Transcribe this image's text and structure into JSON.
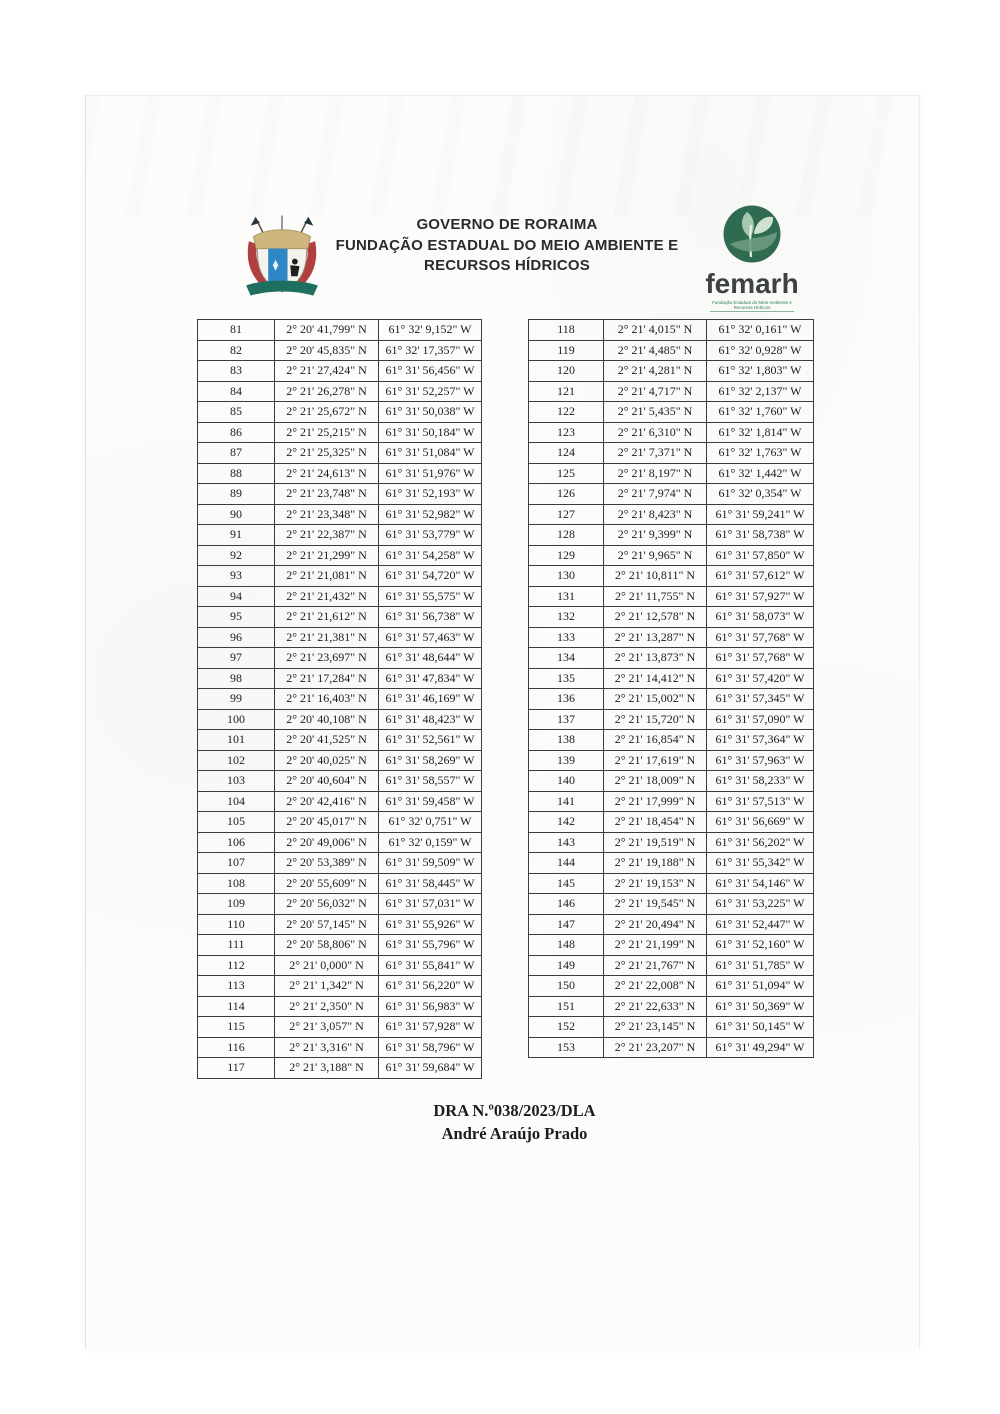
{
  "header": {
    "org_line1": "GOVERNO DE RORAIMA",
    "org_line2": "FUNDAÇÃO ESTADUAL DO MEIO AMBIENTE E",
    "org_line3": "RECURSOS HÍDRICOS",
    "femarh_wordmark": "femarh",
    "femarh_caption": "Fundação Estadual do Meio Ambiente e Recursos Hídricos"
  },
  "footer": {
    "reference": "DRA N.º038/2023/DLA",
    "author": "André Araújo Prado"
  },
  "colors": {
    "femarh_green": "#2e6b50",
    "shield_red": "#b23f3f",
    "shield_blue": "#2f86c4",
    "shield_gold": "#cdb77e",
    "banner_teal": "#1f6f60"
  },
  "tables": {
    "left_rows": [
      [
        "81",
        "2° 20' 41,799\" N",
        "61° 32' 9,152\" W"
      ],
      [
        "82",
        "2° 20' 45,835\" N",
        "61° 32' 17,357\" W"
      ],
      [
        "83",
        "2° 21' 27,424\" N",
        "61° 31' 56,456\" W"
      ],
      [
        "84",
        "2° 21' 26,278\" N",
        "61° 31' 52,257\" W"
      ],
      [
        "85",
        "2° 21' 25,672\" N",
        "61° 31' 50,038\" W"
      ],
      [
        "86",
        "2° 21' 25,215\" N",
        "61° 31' 50,184\" W"
      ],
      [
        "87",
        "2° 21' 25,325\" N",
        "61° 31' 51,084\" W"
      ],
      [
        "88",
        "2° 21' 24,613\" N",
        "61° 31' 51,976\" W"
      ],
      [
        "89",
        "2° 21' 23,748\" N",
        "61° 31' 52,193\" W"
      ],
      [
        "90",
        "2° 21' 23,348\" N",
        "61° 31' 52,982\" W"
      ],
      [
        "91",
        "2° 21' 22,387\" N",
        "61° 31' 53,779\" W"
      ],
      [
        "92",
        "2° 21' 21,299\" N",
        "61° 31' 54,258\" W"
      ],
      [
        "93",
        "2° 21' 21,081\" N",
        "61° 31' 54,720\" W"
      ],
      [
        "94",
        "2° 21' 21,432\" N",
        "61° 31' 55,575\" W"
      ],
      [
        "95",
        "2° 21' 21,612\" N",
        "61° 31' 56,738\" W"
      ],
      [
        "96",
        "2° 21' 21,381\" N",
        "61° 31' 57,463\" W"
      ],
      [
        "97",
        "2° 21' 23,697\" N",
        "61° 31' 48,644\" W"
      ],
      [
        "98",
        "2° 21' 17,284\" N",
        "61° 31' 47,834\" W"
      ],
      [
        "99",
        "2° 21' 16,403\" N",
        "61° 31' 46,169\" W"
      ],
      [
        "100",
        "2° 20' 40,108\" N",
        "61° 31' 48,423\" W"
      ],
      [
        "101",
        "2° 20' 41,525\" N",
        "61° 31' 52,561\" W"
      ],
      [
        "102",
        "2° 20' 40,025\" N",
        "61° 31' 58,269\" W"
      ],
      [
        "103",
        "2° 20' 40,604\" N",
        "61° 31' 58,557\" W"
      ],
      [
        "104",
        "2° 20' 42,416\" N",
        "61° 31' 59,458\" W"
      ],
      [
        "105",
        "2° 20' 45,017\" N",
        "61° 32' 0,751\" W"
      ],
      [
        "106",
        "2° 20' 49,006\" N",
        "61° 32' 0,159\" W"
      ],
      [
        "107",
        "2° 20' 53,389\" N",
        "61° 31' 59,509\" W"
      ],
      [
        "108",
        "2° 20' 55,609\" N",
        "61° 31' 58,445\" W"
      ],
      [
        "109",
        "2° 20' 56,032\" N",
        "61° 31' 57,031\" W"
      ],
      [
        "110",
        "2° 20' 57,145\" N",
        "61° 31' 55,926\" W"
      ],
      [
        "111",
        "2° 20' 58,806\" N",
        "61° 31' 55,796\" W"
      ],
      [
        "112",
        "2° 21' 0,000\" N",
        "61° 31' 55,841\" W"
      ],
      [
        "113",
        "2° 21' 1,342\" N",
        "61° 31' 56,220\" W"
      ],
      [
        "114",
        "2° 21' 2,350\" N",
        "61° 31' 56,983\" W"
      ],
      [
        "115",
        "2° 21' 3,057\" N",
        "61° 31' 57,928\" W"
      ],
      [
        "116",
        "2° 21' 3,316\" N",
        "61° 31' 58,796\" W"
      ],
      [
        "117",
        "2° 21' 3,188\" N",
        "61° 31' 59,684\" W"
      ]
    ],
    "right_rows": [
      [
        "118",
        "2° 21' 4,015\" N",
        "61° 32' 0,161\" W"
      ],
      [
        "119",
        "2° 21' 4,485\" N",
        "61° 32' 0,928\" W"
      ],
      [
        "120",
        "2° 21' 4,281\" N",
        "61° 32' 1,803\" W"
      ],
      [
        "121",
        "2° 21' 4,717\" N",
        "61° 32' 2,137\" W"
      ],
      [
        "122",
        "2° 21' 5,435\" N",
        "61° 32' 1,760\" W"
      ],
      [
        "123",
        "2° 21' 6,310\" N",
        "61° 32' 1,814\" W"
      ],
      [
        "124",
        "2° 21' 7,371\" N",
        "61° 32' 1,763\" W"
      ],
      [
        "125",
        "2° 21' 8,197\" N",
        "61° 32' 1,442\" W"
      ],
      [
        "126",
        "2° 21' 7,974\" N",
        "61° 32' 0,354\" W"
      ],
      [
        "127",
        "2° 21' 8,423\" N",
        "61° 31' 59,241\" W"
      ],
      [
        "128",
        "2° 21' 9,399\" N",
        "61° 31' 58,738\" W"
      ],
      [
        "129",
        "2° 21' 9,965\" N",
        "61° 31' 57,850\" W"
      ],
      [
        "130",
        "2° 21' 10,811\" N",
        "61° 31' 57,612\" W"
      ],
      [
        "131",
        "2° 21' 11,755\" N",
        "61° 31' 57,927\" W"
      ],
      [
        "132",
        "2° 21' 12,578\" N",
        "61° 31' 58,073\" W"
      ],
      [
        "133",
        "2° 21' 13,287\" N",
        "61° 31' 57,768\" W"
      ],
      [
        "134",
        "2° 21' 13,873\" N",
        "61° 31' 57,768\" W"
      ],
      [
        "135",
        "2° 21' 14,412\" N",
        "61° 31' 57,420\" W"
      ],
      [
        "136",
        "2° 21' 15,002\" N",
        "61° 31' 57,345\" W"
      ],
      [
        "137",
        "2° 21' 15,720\" N",
        "61° 31' 57,090\" W"
      ],
      [
        "138",
        "2° 21' 16,854\" N",
        "61° 31' 57,364\" W"
      ],
      [
        "139",
        "2° 21' 17,619\" N",
        "61° 31' 57,963\" W"
      ],
      [
        "140",
        "2° 21' 18,009\" N",
        "61° 31' 58,233\" W"
      ],
      [
        "141",
        "2° 21' 17,999\" N",
        "61° 31' 57,513\" W"
      ],
      [
        "142",
        "2° 21' 18,454\" N",
        "61° 31' 56,669\" W"
      ],
      [
        "143",
        "2° 21' 19,519\" N",
        "61° 31' 56,202\" W"
      ],
      [
        "144",
        "2° 21' 19,188\" N",
        "61° 31' 55,342\" W"
      ],
      [
        "145",
        "2° 21' 19,153\" N",
        "61° 31' 54,146\" W"
      ],
      [
        "146",
        "2° 21' 19,545\" N",
        "61° 31' 53,225\" W"
      ],
      [
        "147",
        "2° 21' 20,494\" N",
        "61° 31' 52,447\" W"
      ],
      [
        "148",
        "2° 21' 21,199\" N",
        "61° 31' 52,160\" W"
      ],
      [
        "149",
        "2° 21' 21,767\" N",
        "61° 31' 51,785\" W"
      ],
      [
        "150",
        "2° 21' 22,008\" N",
        "61° 31' 51,094\" W"
      ],
      [
        "151",
        "2° 21' 22,633\" N",
        "61° 31' 50,369\" W"
      ],
      [
        "152",
        "2° 21' 23,145\" N",
        "61° 31' 50,145\" W"
      ],
      [
        "153",
        "2° 21' 23,207\" N",
        "61° 31' 49,294\" W"
      ]
    ]
  }
}
